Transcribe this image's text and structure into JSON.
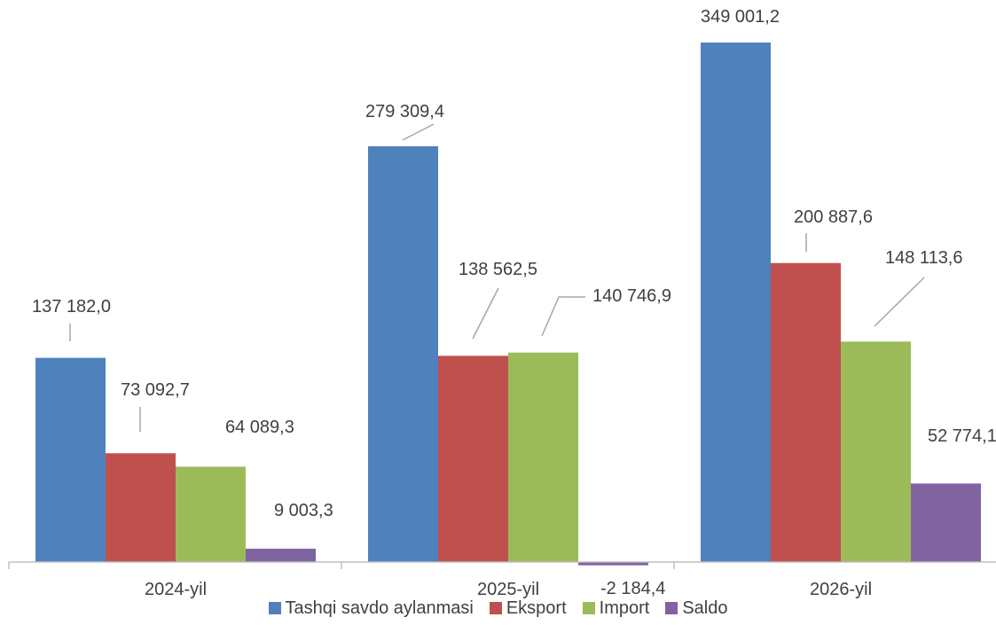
{
  "chart_data": {
    "type": "bar",
    "categories": [
      "2024-yil",
      "2025-yil",
      "2026-yil"
    ],
    "series": [
      {
        "name": "Tashqi savdo aylanmasi",
        "color": "#4f81bd",
        "values": [
          137182.0,
          279309.4,
          349001.2
        ],
        "labels": [
          "137 182,0",
          "279 309,4",
          "349 001,2"
        ]
      },
      {
        "name": "Eksport",
        "color": "#c0504d",
        "values": [
          73092.7,
          138562.5,
          200887.6
        ],
        "labels": [
          "73 092,7",
          "138 562,5",
          "200 887,6"
        ]
      },
      {
        "name": "Import",
        "color": "#9bbb59",
        "values": [
          64089.3,
          140746.9,
          148113.6
        ],
        "labels": [
          "64 089,3",
          "140 746,9",
          "148 113,6"
        ]
      },
      {
        "name": "Saldo",
        "color": "#8064a2",
        "values": [
          9003.3,
          -2184.4,
          52774.1
        ],
        "labels": [
          "9 003,3",
          "-2 184,4",
          "52 774,1"
        ]
      }
    ],
    "legend_position": "bottom",
    "grid": false,
    "axis_color": "#bfbfbf",
    "label_color": "#404040"
  }
}
